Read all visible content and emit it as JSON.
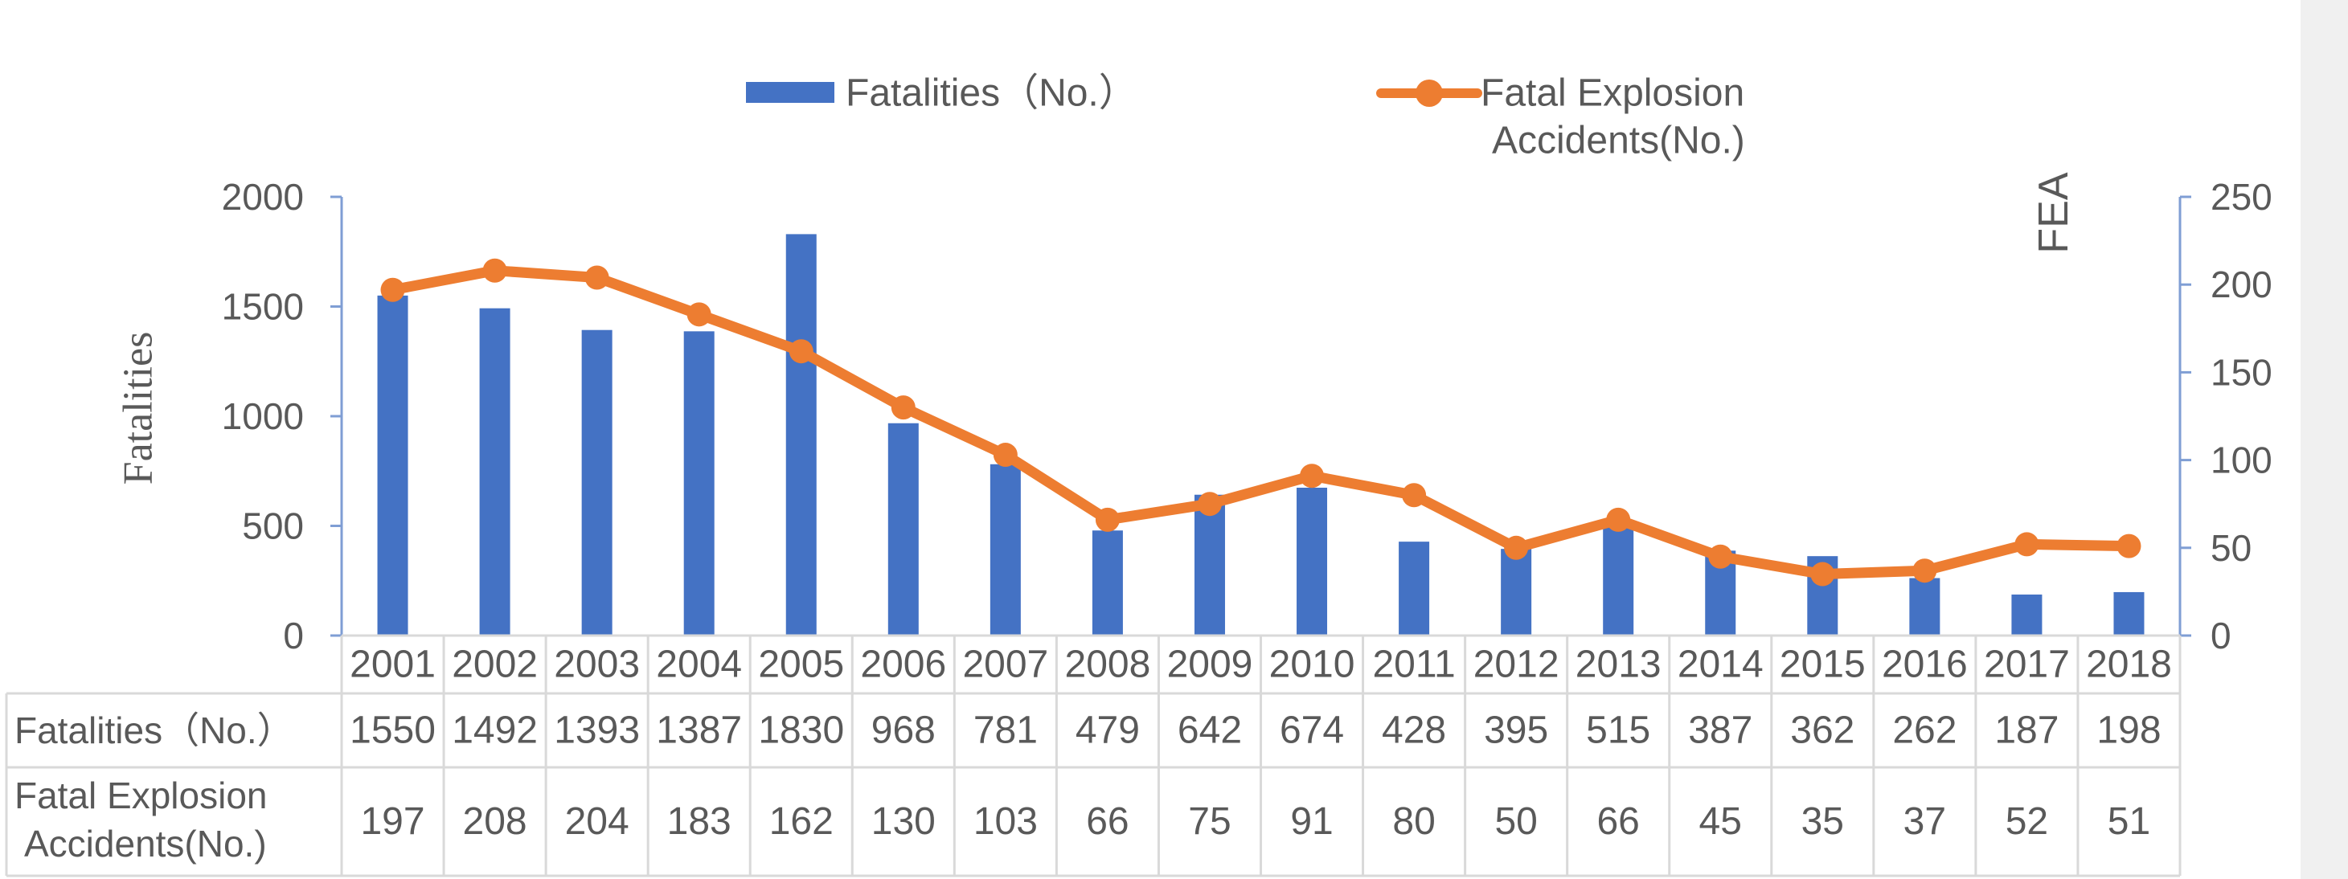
{
  "chart_data": {
    "type": "bar",
    "categories": [
      "2001",
      "2002",
      "2003",
      "2004",
      "2005",
      "2006",
      "2007",
      "2008",
      "2009",
      "2010",
      "2011",
      "2012",
      "2013",
      "2014",
      "2015",
      "2016",
      "2017",
      "2018"
    ],
    "series": [
      {
        "name": "Fatalities（No.）",
        "type": "bar",
        "axis": "left",
        "color": "#4472c4",
        "values": [
          1550,
          1492,
          1393,
          1387,
          1830,
          968,
          781,
          479,
          642,
          674,
          428,
          395,
          515,
          387,
          362,
          262,
          187,
          198
        ]
      },
      {
        "name": "Fatal Explosion Accidents(No.)",
        "type": "line",
        "axis": "right",
        "color": "#ed7d31",
        "values": [
          197,
          208,
          204,
          183,
          162,
          130,
          103,
          66,
          75,
          91,
          80,
          50,
          66,
          45,
          35,
          37,
          52,
          51
        ]
      }
    ],
    "ylabel": "Fatalities",
    "y2label": "FEA",
    "ylim": [
      0,
      2000
    ],
    "y2lim": [
      0,
      250
    ],
    "yticks": [
      "0",
      "500",
      "1000",
      "1500",
      "2000"
    ],
    "y2ticks": [
      "0",
      "50",
      "100",
      "150",
      "200",
      "250"
    ],
    "legend": {
      "placement": "top",
      "entries": [
        "Fatalities（No.）",
        "Fatal Explosion",
        "Accidents(No.)"
      ]
    },
    "table": {
      "row_headers": [
        [
          "Fatalities（No.）"
        ],
        [
          "Fatal Explosion",
          "Accidents(No.)"
        ]
      ],
      "rows": [
        [
          "1550",
          "1492",
          "1393",
          "1387",
          "1830",
          "968",
          "781",
          "479",
          "642",
          "674",
          "428",
          "395",
          "515",
          "387",
          "362",
          "262",
          "187",
          "198"
        ],
        [
          "197",
          "208",
          "204",
          "183",
          "162",
          "130",
          "103",
          "66",
          "75",
          "91",
          "80",
          "50",
          "66",
          "45",
          "35",
          "37",
          "52",
          "51"
        ]
      ]
    },
    "grid": false
  }
}
